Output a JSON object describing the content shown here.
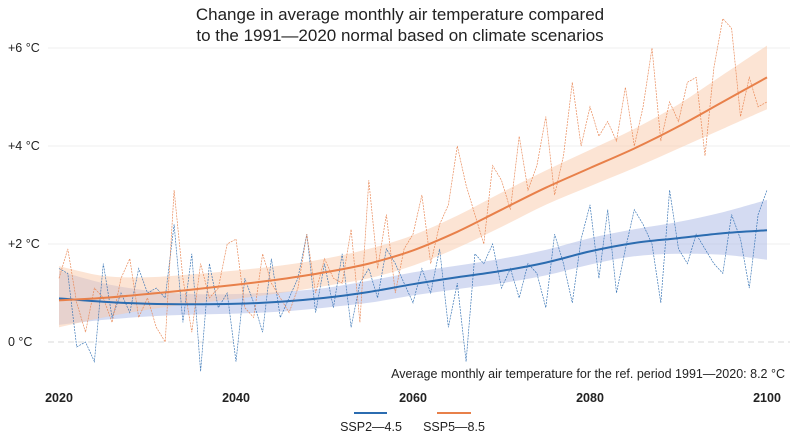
{
  "chart_data": {
    "type": "line",
    "title_line1": "Change in average monthly air temperature compared",
    "title_line2": "to the 1991—2020 normal based on climate scenarios",
    "note": "Average monthly air temperature for the ref. period 1991—2020: 8.2 °C",
    "xlim": [
      2019,
      2102
    ],
    "ylim": [
      -1.0,
      7.0
    ],
    "x_ticks": [
      2020,
      2040,
      2060,
      2080,
      2100
    ],
    "x_tick_labels": [
      "2020",
      "2040",
      "2060",
      "2080",
      "2100"
    ],
    "y_ticks": [
      0,
      2,
      4,
      6
    ],
    "y_tick_labels": [
      "0 °C",
      "+2 °C",
      "+4 °C",
      "+6 °C"
    ],
    "grid": true,
    "legend_position": "bottom-center",
    "series": [
      {
        "name": "SSP2—4.5",
        "color": "#2b6cb0",
        "band_color": "#a9b8e6",
        "trend": {
          "x": [
            2020,
            2025,
            2030,
            2035,
            2040,
            2045,
            2050,
            2055,
            2060,
            2065,
            2070,
            2075,
            2080,
            2085,
            2090,
            2095,
            2100
          ],
          "y": [
            0.89,
            0.82,
            0.78,
            0.77,
            0.78,
            0.82,
            0.9,
            1.02,
            1.18,
            1.32,
            1.45,
            1.62,
            1.85,
            2.02,
            2.12,
            2.22,
            2.28
          ]
        },
        "band": {
          "upper": [
            1.45,
            1.2,
            1.05,
            0.98,
            0.98,
            1.02,
            1.1,
            1.25,
            1.42,
            1.56,
            1.7,
            1.88,
            2.12,
            2.3,
            2.45,
            2.65,
            2.9
          ],
          "lower": [
            0.35,
            0.45,
            0.52,
            0.56,
            0.58,
            0.62,
            0.7,
            0.8,
            0.95,
            1.08,
            1.2,
            1.36,
            1.58,
            1.75,
            1.8,
            1.78,
            1.68
          ]
        },
        "annual": {
          "x": [
            2020,
            2021,
            2022,
            2023,
            2024,
            2025,
            2026,
            2027,
            2028,
            2029,
            2030,
            2031,
            2032,
            2033,
            2034,
            2035,
            2036,
            2037,
            2038,
            2039,
            2040,
            2041,
            2042,
            2043,
            2044,
            2045,
            2046,
            2047,
            2048,
            2049,
            2050,
            2051,
            2052,
            2053,
            2054,
            2055,
            2056,
            2057,
            2058,
            2059,
            2060,
            2061,
            2062,
            2063,
            2064,
            2065,
            2066,
            2067,
            2068,
            2069,
            2070,
            2071,
            2072,
            2073,
            2074,
            2075,
            2076,
            2077,
            2078,
            2079,
            2080,
            2081,
            2082,
            2083,
            2084,
            2085,
            2086,
            2087,
            2088,
            2089,
            2090,
            2091,
            2092,
            2093,
            2094,
            2095,
            2096,
            2097,
            2098,
            2099,
            2100
          ],
          "y": [
            1.5,
            1.4,
            -0.1,
            0.0,
            -0.4,
            1.6,
            0.5,
            1.0,
            0.6,
            1.5,
            1.0,
            1.1,
            0.9,
            2.4,
            0.4,
            1.8,
            -0.6,
            1.6,
            0.7,
            1.0,
            -0.4,
            1.3,
            0.8,
            0.2,
            1.7,
            0.5,
            0.9,
            1.3,
            2.2,
            0.6,
            1.6,
            0.7,
            1.8,
            0.3,
            1.2,
            1.5,
            0.9,
            1.9,
            1.6,
            1.2,
            0.8,
            1.5,
            1.0,
            1.9,
            0.3,
            1.2,
            -0.4,
            1.8,
            1.6,
            2.0,
            1.1,
            1.5,
            0.9,
            1.6,
            1.4,
            0.7,
            2.2,
            1.6,
            0.8,
            2.1,
            2.8,
            1.3,
            2.7,
            1.0,
            1.9,
            2.7,
            2.4,
            2.0,
            0.8,
            3.1,
            1.9,
            1.6,
            2.2,
            1.9,
            1.6,
            1.4,
            2.6,
            2.1,
            1.1,
            2.6,
            3.1
          ]
        }
      },
      {
        "name": "SSP5—8.5",
        "color": "#e8804a",
        "band_color": "#f9c9aa",
        "trend": {
          "x": [
            2020,
            2025,
            2030,
            2035,
            2040,
            2045,
            2050,
            2055,
            2060,
            2065,
            2070,
            2075,
            2080,
            2085,
            2090,
            2095,
            2100
          ],
          "y": [
            0.85,
            0.9,
            0.98,
            1.07,
            1.17,
            1.28,
            1.42,
            1.6,
            1.87,
            2.25,
            2.7,
            3.15,
            3.55,
            3.95,
            4.4,
            4.9,
            5.4
          ]
        },
        "band": {
          "upper": [
            1.55,
            1.35,
            1.32,
            1.38,
            1.46,
            1.56,
            1.7,
            1.9,
            2.18,
            2.58,
            3.05,
            3.5,
            3.92,
            4.35,
            4.85,
            5.45,
            6.05
          ],
          "lower": [
            0.3,
            0.5,
            0.66,
            0.78,
            0.88,
            1.0,
            1.14,
            1.3,
            1.56,
            1.92,
            2.35,
            2.8,
            3.18,
            3.55,
            3.95,
            4.35,
            4.75
          ]
        },
        "annual": {
          "x": [
            2020,
            2021,
            2022,
            2023,
            2024,
            2025,
            2026,
            2027,
            2028,
            2029,
            2030,
            2031,
            2032,
            2033,
            2034,
            2035,
            2036,
            2037,
            2038,
            2039,
            2040,
            2041,
            2042,
            2043,
            2044,
            2045,
            2046,
            2047,
            2048,
            2049,
            2050,
            2051,
            2052,
            2053,
            2054,
            2055,
            2056,
            2057,
            2058,
            2059,
            2060,
            2061,
            2062,
            2063,
            2064,
            2065,
            2066,
            2067,
            2068,
            2069,
            2070,
            2071,
            2072,
            2073,
            2074,
            2075,
            2076,
            2077,
            2078,
            2079,
            2080,
            2081,
            2082,
            2083,
            2084,
            2085,
            2086,
            2087,
            2088,
            2089,
            2090,
            2091,
            2092,
            2093,
            2094,
            2095,
            2096,
            2097,
            2098,
            2099,
            2100
          ],
          "y": [
            1.3,
            1.9,
            0.8,
            0.2,
            1.1,
            0.9,
            0.4,
            1.3,
            1.7,
            0.5,
            0.9,
            0.3,
            0.0,
            3.1,
            1.3,
            0.2,
            1.6,
            0.9,
            1.1,
            2.0,
            2.1,
            0.7,
            0.5,
            1.8,
            1.2,
            0.9,
            0.6,
            1.1,
            2.2,
            1.0,
            1.7,
            1.3,
            1.2,
            2.3,
            0.4,
            3.3,
            1.5,
            2.6,
            1.0,
            1.9,
            2.2,
            3.0,
            1.6,
            2.4,
            2.8,
            4.0,
            3.2,
            2.6,
            2.0,
            3.6,
            3.3,
            2.7,
            4.2,
            3.1,
            3.6,
            4.6,
            3.0,
            3.8,
            5.3,
            4.0,
            4.8,
            4.2,
            4.5,
            4.1,
            5.2,
            4.0,
            4.8,
            6.0,
            4.1,
            4.9,
            4.5,
            5.3,
            5.4,
            3.8,
            5.6,
            6.6,
            6.4,
            4.6,
            5.4,
            4.8,
            4.9
          ]
        }
      }
    ]
  }
}
